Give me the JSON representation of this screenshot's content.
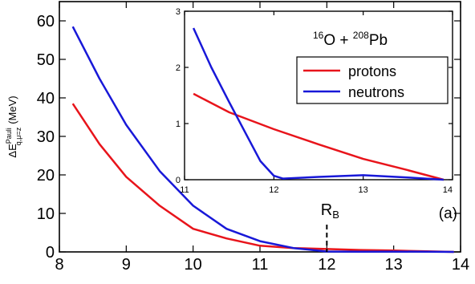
{
  "chart_data": [
    {
      "type": "line",
      "xlabel": "",
      "ylabel_main": "ΔE",
      "ylabel_sup": "Pauli",
      "ylabel_sub": "q,μ=z",
      "ylabel_unit": "(MeV)",
      "xlim": [
        8,
        14
      ],
      "ylim": [
        0,
        65
      ],
      "xticks": [
        8,
        9,
        10,
        11,
        12,
        13,
        14
      ],
      "yticks": [
        0,
        10,
        20,
        30,
        40,
        50,
        60
      ],
      "annotation_rb_main": "R",
      "annotation_rb_sub": "B",
      "annotation_rb_x": 12,
      "panel_label": "(a)",
      "series": [
        {
          "name": "protons",
          "color": "#e8141b",
          "x": [
            8.2,
            8.6,
            9.0,
            9.5,
            10.0,
            10.5,
            11.0,
            11.5,
            12.0,
            12.5,
            13.0,
            13.5,
            13.9
          ],
          "y": [
            38.5,
            28.0,
            19.5,
            12.0,
            6.0,
            3.5,
            1.6,
            1.0,
            0.75,
            0.5,
            0.35,
            0.15,
            0.0
          ]
        },
        {
          "name": "neutrons",
          "color": "#1818d8",
          "x": [
            8.2,
            8.6,
            9.0,
            9.5,
            10.0,
            10.5,
            11.0,
            11.5,
            12.0,
            12.5,
            13.0,
            13.5,
            13.9
          ],
          "y": [
            58.5,
            45.0,
            33.0,
            21.0,
            12.0,
            6.0,
            2.8,
            1.0,
            0.1,
            0.05,
            0.08,
            0.05,
            0.0
          ]
        }
      ]
    },
    {
      "type": "line",
      "title_o_mass": "16",
      "title_o_sym": "O",
      "title_plus": " + ",
      "title_pb_mass": "208",
      "title_pb_sym": "Pb",
      "xlim": [
        11,
        14
      ],
      "ylim": [
        0,
        3
      ],
      "xticks": [
        11,
        12,
        13,
        14
      ],
      "yticks": [
        0,
        1,
        2,
        3
      ],
      "legend_position": "right",
      "series": [
        {
          "name": "protons",
          "color": "#e8141b",
          "x": [
            11.1,
            11.5,
            12.0,
            12.5,
            13.0,
            13.5,
            13.9
          ],
          "y": [
            1.53,
            1.2,
            0.9,
            0.63,
            0.37,
            0.17,
            0.0
          ]
        },
        {
          "name": "neutrons",
          "color": "#1818d8",
          "x": [
            11.1,
            11.3,
            11.5,
            11.7,
            11.85,
            12.0,
            12.1,
            12.5,
            13.0,
            13.5,
            13.9
          ],
          "y": [
            2.7,
            2.0,
            1.38,
            0.78,
            0.33,
            0.07,
            0.02,
            0.05,
            0.08,
            0.04,
            0.0
          ]
        }
      ]
    }
  ]
}
